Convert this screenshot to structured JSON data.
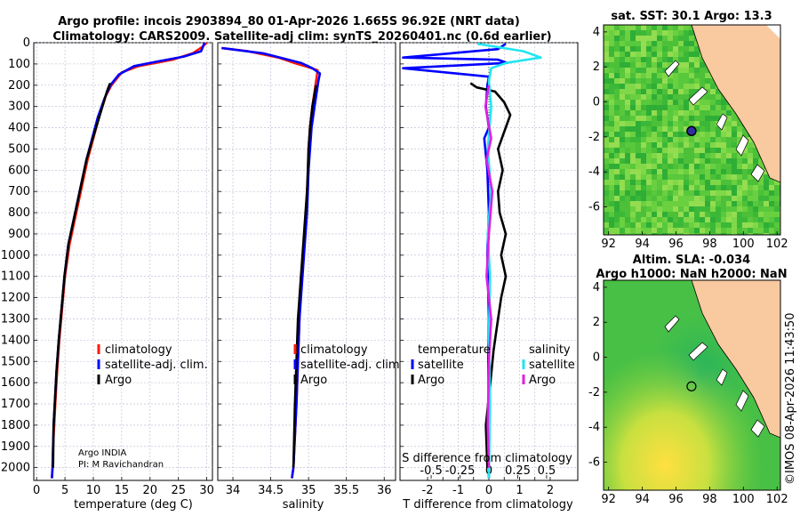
{
  "title": {
    "line1": "Argo profile: incois 2903894_80 01-Apr-2026 1.665S 96.92E (NRT data)",
    "line2": "Climatology: CARS2009. Satellite-adj clim: synTS_20260401.nc (0.6d earlier)"
  },
  "credit": {
    "line1": "Argo INDIA",
    "line2": "PI: M Ravichandran"
  },
  "timestamp": "©IMOS 08-Apr-2026 11:43:50",
  "colors": {
    "climatology": "#ff1a00",
    "satellite_temp": "#0000ff",
    "argo": "#000000",
    "satellite_sal": "#22e5f0",
    "argo_sal": "#e020e0",
    "land": "#f9c9a0",
    "grid": "#9aa0c0"
  },
  "chart_data": [
    {
      "id": "temperature",
      "type": "line",
      "xlabel": "temperature (deg C)",
      "ylabel": "depth",
      "xlim": [
        -0.5,
        31
      ],
      "ylim": [
        2060,
        0
      ],
      "xticks": [
        0,
        5,
        10,
        15,
        20,
        25,
        30
      ],
      "yticks": [
        0,
        100,
        200,
        300,
        400,
        500,
        600,
        700,
        800,
        900,
        1000,
        1100,
        1200,
        1300,
        1400,
        1500,
        1600,
        1700,
        1800,
        1900,
        2000
      ],
      "legend": [
        "climatology",
        "satellite-adj. clim.",
        "Argo"
      ],
      "series": [
        {
          "name": "climatology",
          "color": "#ff1a00",
          "x": [
            30.0,
            29.2,
            27.5,
            24,
            18,
            15,
            13.2,
            12.2,
            11.0,
            10.0,
            9.0,
            8.2,
            7.4,
            6.6,
            5.8,
            5.0,
            4.5,
            4.0,
            3.6,
            3.3,
            3.1,
            2.9,
            2.8,
            2.7
          ],
          "y": [
            0,
            20,
            50,
            80,
            110,
            140,
            200,
            250,
            350,
            450,
            550,
            650,
            750,
            850,
            950,
            1100,
            1250,
            1400,
            1550,
            1700,
            1800,
            1900,
            2000,
            2050
          ]
        },
        {
          "name": "satellite-adj. clim.",
          "color": "#0000ff",
          "x": [
            29.6,
            29.0,
            26,
            21,
            17.2,
            14.5,
            13.0,
            12.0,
            10.8,
            9.8,
            8.8,
            8.0,
            7.2,
            6.4,
            5.6,
            4.9,
            4.4,
            3.9,
            3.5,
            3.2,
            3.0,
            2.9,
            2.8,
            2.7
          ],
          "y": [
            0,
            40,
            65,
            90,
            110,
            150,
            200,
            260,
            350,
            450,
            550,
            650,
            750,
            850,
            950,
            1100,
            1250,
            1400,
            1550,
            1700,
            1800,
            1900,
            2000,
            2050
          ]
        },
        {
          "name": "Argo",
          "color": "#000000",
          "x": [
            13.0,
            12.8,
            12.4,
            11.6,
            10.7,
            9.8,
            8.8,
            8.0,
            7.2,
            6.4,
            5.6,
            4.9,
            4.4,
            3.9,
            3.5,
            3.2,
            3.0,
            2.9
          ],
          "y": [
            190,
            200,
            230,
            300,
            380,
            460,
            550,
            650,
            750,
            850,
            950,
            1100,
            1250,
            1400,
            1550,
            1700,
            1800,
            2000
          ]
        }
      ]
    },
    {
      "id": "salinity",
      "type": "line",
      "xlabel": "salinity",
      "ylabel": "depth",
      "xlim": [
        33.8,
        36.15
      ],
      "ylim": [
        2060,
        0
      ],
      "xticks": [
        34,
        34.5,
        35,
        35.5,
        36
      ],
      "legend": [
        "climatology",
        "satellite-adj. clim.",
        "Argo"
      ],
      "series": [
        {
          "name": "climatology",
          "color": "#ff1a00",
          "x": [
            33.85,
            34.2,
            34.6,
            34.85,
            35.0,
            35.12,
            35.1,
            35.05,
            35.02,
            35.0,
            35.0,
            34.98,
            34.97,
            34.95,
            34.93,
            34.9,
            34.88,
            34.86,
            34.84,
            34.82,
            34.8,
            34.78
          ],
          "y": [
            25,
            40,
            70,
            100,
            115,
            130,
            180,
            300,
            400,
            500,
            600,
            700,
            800,
            900,
            1000,
            1100,
            1300,
            1500,
            1700,
            1850,
            2000,
            2050
          ]
        },
        {
          "name": "satellite-adj. clim.",
          "color": "#0000ff",
          "x": [
            33.85,
            34.4,
            34.9,
            35.05,
            35.15,
            35.13,
            35.08,
            35.04,
            35.02,
            35.0,
            34.99,
            34.98,
            34.96,
            34.94,
            34.92,
            34.9,
            34.88,
            34.86,
            34.84,
            34.82,
            34.8,
            34.78
          ],
          "y": [
            25,
            50,
            95,
            120,
            145,
            180,
            300,
            400,
            500,
            600,
            700,
            800,
            900,
            1000,
            1100,
            1200,
            1300,
            1500,
            1700,
            1850,
            2000,
            2050
          ]
        },
        {
          "name": "Argo",
          "color": "#000000",
          "x": [
            35.1,
            35.05,
            35.02,
            35.0,
            34.99,
            34.98,
            34.96,
            34.94,
            34.92,
            34.9,
            34.88,
            34.86,
            34.84,
            34.82,
            34.8
          ],
          "y": [
            200,
            300,
            400,
            500,
            600,
            700,
            800,
            900,
            1000,
            1100,
            1200,
            1300,
            1500,
            1700,
            2000
          ]
        }
      ]
    },
    {
      "id": "difference",
      "type": "line",
      "xlabel": "T difference from climatology",
      "top_xlabel": "S difference from climatology",
      "xlim": [
        -2.9,
        2.9
      ],
      "ylim": [
        2060,
        0
      ],
      "xticks": [
        -2,
        -1.5,
        -1,
        -0.5,
        0,
        0.5,
        1,
        1.5,
        2
      ],
      "xticklabels": [
        "-2",
        "",
        "-1",
        "",
        "0",
        "",
        "1",
        "",
        "2"
      ],
      "top_xticks": [
        -0.5,
        -0.25,
        0,
        0.25,
        0.5
      ],
      "top_xticklabels": [
        "-0.5",
        "-0.25",
        "0",
        "0.25",
        "0.5"
      ],
      "s_scale": 0.375,
      "legend_headers": [
        "temperature",
        "salinity"
      ],
      "legend": [
        "satellite",
        "Argo",
        "satellite",
        "Argo"
      ],
      "series": [
        {
          "name": "T satellite",
          "color": "#0000ff",
          "x": [
            0.55,
            0.3,
            -2.8,
            0.3,
            0.6,
            -2.8,
            0.0,
            -0.05,
            -0.1,
            0.0,
            -0.15,
            -0.05,
            0.0,
            -0.05,
            0.0,
            -0.02,
            0.0,
            0.0
          ],
          "y": [
            5,
            30,
            70,
            80,
            95,
            120,
            160,
            200,
            300,
            400,
            450,
            600,
            800,
            1000,
            1300,
            1500,
            1800,
            2050
          ]
        },
        {
          "name": "T Argo",
          "color": "#000000",
          "x": [
            -0.6,
            -0.4,
            0.2,
            0.5,
            0.7,
            0.5,
            0.3,
            0.45,
            0.3,
            0.35,
            0.55,
            0.4,
            0.55,
            0.4,
            0.3,
            0.15,
            0.05,
            -0.1,
            -0.05
          ],
          "y": [
            190,
            210,
            230,
            280,
            340,
            420,
            500,
            600,
            700,
            800,
            900,
            1000,
            1100,
            1200,
            1300,
            1450,
            1600,
            1800,
            2000
          ]
        },
        {
          "name": "S satellite",
          "color": "#22e5f0",
          "s_values": [
            -0.1,
            0.3,
            0.45,
            0.15,
            0.02,
            0.0,
            0.02,
            -0.01,
            0.02,
            -0.01,
            0.01,
            0.0,
            0.01,
            0.0
          ],
          "y": [
            5,
            40,
            70,
            95,
            120,
            180,
            300,
            500,
            700,
            900,
            1100,
            1400,
            1700,
            2050
          ]
        },
        {
          "name": "S Argo",
          "color": "#e020e0",
          "s_values": [
            0.0,
            -0.03,
            0.02,
            -0.02,
            0.03,
            0.0,
            -0.02,
            0.02,
            0.0,
            -0.01,
            0.0
          ],
          "y": [
            200,
            300,
            450,
            550,
            700,
            900,
            1100,
            1300,
            1500,
            1800,
            2000
          ]
        }
      ]
    }
  ],
  "maps": [
    {
      "id": "sst",
      "title": "sat. SST: 30.1 Argo: 13.3",
      "xticks": [
        92,
        94,
        96,
        98,
        100,
        102
      ],
      "yticks": [
        4,
        2,
        0,
        -2,
        -4,
        -6
      ],
      "xlim": [
        91.7,
        102.2
      ],
      "ylim": [
        -7.6,
        4.4
      ],
      "argo_lon": 96.92,
      "argo_lat": -1.665
    },
    {
      "id": "sla",
      "title": "Altim. SLA: -0.034",
      "title2": "Argo h1000: NaN h2000: NaN",
      "xticks": [
        92,
        94,
        96,
        98,
        100,
        102
      ],
      "yticks": [
        4,
        2,
        0,
        -2,
        -4,
        -6
      ],
      "xlim": [
        91.7,
        102.2
      ],
      "ylim": [
        -7.6,
        4.4
      ],
      "argo_lon": 96.92,
      "argo_lat": -1.665
    }
  ]
}
